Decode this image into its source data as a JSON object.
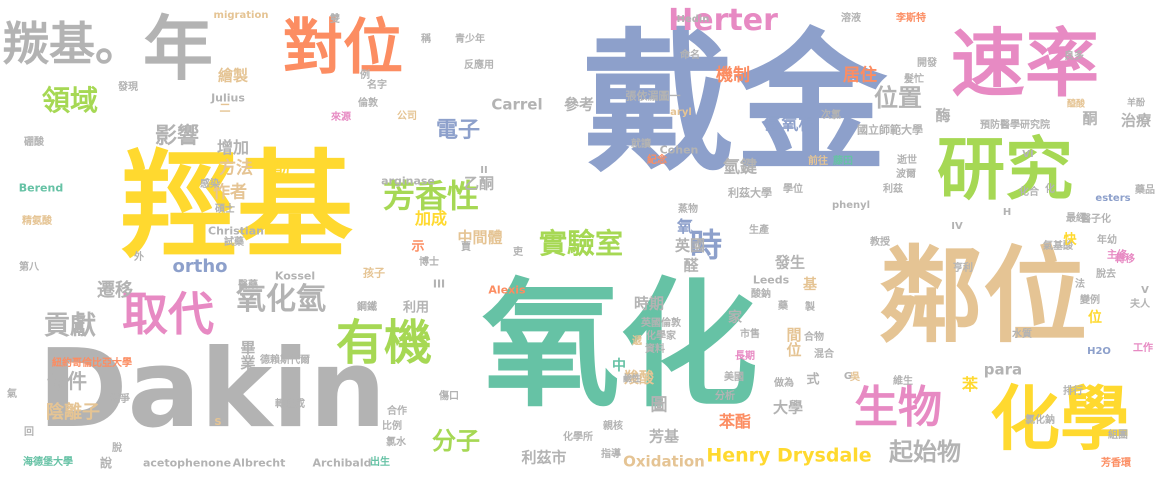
{
  "words": [
    {
      "text": "戴金",
      "color": "#8DA0CB"
    },
    {
      "text": "羥基",
      "color": "#FFD92F"
    },
    {
      "text": "氧化",
      "color": "#66C2A5"
    },
    {
      "text": "Dakin",
      "color": "#B3B3B3"
    },
    {
      "text": "鄰位",
      "color": "#E5C494"
    },
    {
      "text": "速率",
      "color": "#E78AC3"
    },
    {
      "text": "研究",
      "color": "#A6D854"
    },
    {
      "text": "化學",
      "color": "#FFD92F"
    },
    {
      "text": "對位",
      "color": "#FC8D62"
    },
    {
      "text": "年",
      "color": "#B3B3B3"
    },
    {
      "text": "羰基。",
      "color": "#B3B3B3"
    },
    {
      "text": "取代",
      "color": "#E78AC3"
    },
    {
      "text": "有機",
      "color": "#A6D854"
    },
    {
      "text": "生物",
      "color": "#E78AC3"
    },
    {
      "text": "Herter",
      "color": "#E78AC3"
    },
    {
      "text": "芳香性",
      "color": "#A6D854"
    },
    {
      "text": "實驗室",
      "color": "#A6D854"
    },
    {
      "text": "時",
      "color": "#8DA0CB"
    },
    {
      "text": "氧化氫",
      "color": "#B3B3B3"
    },
    {
      "text": "領域",
      "color": "#A6D854"
    },
    {
      "text": "影響",
      "color": "#B3B3B3"
    },
    {
      "text": "貢獻",
      "color": "#B3B3B3"
    },
    {
      "text": "電子",
      "color": "#8DA0CB"
    },
    {
      "text": "位置",
      "color": "#B3B3B3"
    },
    {
      "text": "分子",
      "color": "#A6D854"
    },
    {
      "text": "起始物",
      "color": "#B3B3B3"
    },
    {
      "text": "Henry Drysdale",
      "color": "#FFD92F"
    },
    {
      "text": "條件",
      "color": "#B3B3B3"
    },
    {
      "text": "陰離子",
      "color": "#E5C494"
    },
    {
      "text": "遷移",
      "color": "#B3B3B3"
    },
    {
      "text": "ortho",
      "color": "#8DA0CB"
    },
    {
      "text": "方法",
      "color": "#E5C494"
    },
    {
      "text": "酚",
      "color": "#FFD92F"
    },
    {
      "text": "作者",
      "color": "#E5C494"
    },
    {
      "text": "加成",
      "color": "#FFD92F"
    },
    {
      "text": "乙酮",
      "color": "#B3B3B3"
    },
    {
      "text": "中間體",
      "color": "#E5C494"
    },
    {
      "text": "增加",
      "color": "#B3B3B3"
    },
    {
      "text": "繪製",
      "color": "#E5C494"
    },
    {
      "text": "機制",
      "color": "#FC8D62"
    },
    {
      "text": "居住",
      "color": "#FC8D62"
    },
    {
      "text": "氫氧根",
      "color": "#8DA0CB"
    },
    {
      "text": "氫鍵",
      "color": "#B3B3B3"
    },
    {
      "text": "氧",
      "color": "#8DA0CB"
    },
    {
      "text": "英國",
      "color": "#B3B3B3"
    },
    {
      "text": "醛",
      "color": "#B3B3B3"
    },
    {
      "text": "發生",
      "color": "#B3B3B3"
    },
    {
      "text": "時期",
      "color": "#B3B3B3"
    },
    {
      "text": "羧酸",
      "color": "#E5C494"
    },
    {
      "text": "圖",
      "color": "#B3B3B3"
    },
    {
      "text": "芳基",
      "color": "#B3B3B3"
    },
    {
      "text": "苯酯",
      "color": "#FC8D62"
    },
    {
      "text": "大學",
      "color": "#B3B3B3"
    },
    {
      "text": "間位",
      "color": "#E5C494"
    },
    {
      "text": "畢業",
      "color": "#B3B3B3"
    },
    {
      "text": "利茲市",
      "color": "#B3B3B3"
    },
    {
      "text": "Oxidation",
      "color": "#E5C494"
    },
    {
      "text": "Carrel",
      "color": "#B3B3B3"
    },
    {
      "text": "參考",
      "color": "#B3B3B3"
    },
    {
      "text": "酶",
      "color": "#B3B3B3"
    },
    {
      "text": "酮",
      "color": "#B3B3B3"
    },
    {
      "text": "治療",
      "color": "#B3B3B3"
    },
    {
      "text": "苯",
      "color": "#FFD92F"
    },
    {
      "text": "para",
      "color": "#B3B3B3"
    },
    {
      "text": "Julius",
      "color": "#B3B3B3"
    },
    {
      "text": "Berend",
      "color": "#66C2A5"
    },
    {
      "text": "Christian",
      "color": "#B3B3B3"
    },
    {
      "text": "Kossel",
      "color": "#B3B3B3"
    },
    {
      "text": "Alexis",
      "color": "#FC8D62"
    },
    {
      "text": "Albrecht",
      "color": "#B3B3B3"
    },
    {
      "text": "Archibald",
      "color": "#B3B3B3"
    },
    {
      "text": "acetophenone",
      "color": "#B3B3B3"
    },
    {
      "text": "arginase",
      "color": "#B3B3B3"
    },
    {
      "text": "Cohen",
      "color": "#B3B3B3"
    },
    {
      "text": "Leeds",
      "color": "#B3B3B3"
    },
    {
      "text": "Hedin",
      "color": "#B3B3B3"
    },
    {
      "text": "migration",
      "color": "#E5C494"
    },
    {
      "text": "phenyl",
      "color": "#B3B3B3"
    },
    {
      "text": "esters",
      "color": "#8DA0CB"
    },
    {
      "text": "aryl",
      "color": "#E5C494"
    },
    {
      "text": "H2O",
      "color": "#8DA0CB"
    },
    {
      "text": "II",
      "color": "#B3B3B3"
    },
    {
      "text": "III",
      "color": "#B3B3B3"
    },
    {
      "text": "IV",
      "color": "#B3B3B3"
    },
    {
      "text": "V",
      "color": "#B3B3B3"
    },
    {
      "text": "VI",
      "color": "#B3B3B3"
    },
    {
      "text": "G",
      "color": "#B3B3B3"
    },
    {
      "text": "S",
      "color": "#E5C494"
    },
    {
      "text": "H",
      "color": "#B3B3B3"
    },
    {
      "text": "國立師範大學",
      "color": "#B3B3B3"
    },
    {
      "text": "預防醫學研究院",
      "color": "#B3B3B3"
    },
    {
      "text": "利茲大學",
      "color": "#B3B3B3"
    },
    {
      "text": "張依湄圖一",
      "color": "#B3B3B3"
    },
    {
      "text": "英國倫敦",
      "color": "#B3B3B3"
    },
    {
      "text": "紐約哥倫比亞大學",
      "color": "#FC8D62"
    },
    {
      "text": "海德堡大學",
      "color": "#66C2A5"
    },
    {
      "text": "德賴斯代爾",
      "color": "#B3B3B3"
    },
    {
      "text": "化學所",
      "color": "#B3B3B3"
    },
    {
      "text": "化學家",
      "color": "#B3B3B3"
    },
    {
      "text": "精氨酸",
      "color": "#E5C494"
    },
    {
      "text": "硼酸",
      "color": "#B3B3B3"
    },
    {
      "text": "氣基酸",
      "color": "#B3B3B3"
    },
    {
      "text": "氯化鈉",
      "color": "#B3B3B3"
    },
    {
      "text": "芳香環",
      "color": "#FC8D62"
    },
    {
      "text": "李斯特",
      "color": "#FC8D62"
    },
    {
      "text": "溶液",
      "color": "#B3B3B3"
    },
    {
      "text": "反應用",
      "color": "#B3B3B3"
    },
    {
      "text": "青少年",
      "color": "#B3B3B3"
    },
    {
      "text": "來源",
      "color": "#E78AC3"
    },
    {
      "text": "倫敦",
      "color": "#B3B3B3"
    },
    {
      "text": "名字",
      "color": "#B3B3B3"
    },
    {
      "text": "公司",
      "color": "#E5C494"
    },
    {
      "text": "就讀",
      "color": "#B3B3B3"
    },
    {
      "text": "紀念",
      "color": "#FC8D62"
    },
    {
      "text": "藥品",
      "color": "#B3B3B3"
    },
    {
      "text": "良多",
      "color": "#B3B3B3"
    },
    {
      "text": "開發",
      "color": "#B3B3B3"
    },
    {
      "text": "髮忙",
      "color": "#B3B3B3"
    },
    {
      "text": "逝世",
      "color": "#B3B3B3"
    },
    {
      "text": "波爾",
      "color": "#B3B3B3"
    },
    {
      "text": "利茲",
      "color": "#B3B3B3"
    },
    {
      "text": "前往",
      "color": "#E5C494"
    },
    {
      "text": "藤田",
      "color": "#66C2A5"
    },
    {
      "text": "學位",
      "color": "#B3B3B3"
    },
    {
      "text": "教授",
      "color": "#B3B3B3"
    },
    {
      "text": "亨利",
      "color": "#B3B3B3"
    },
    {
      "text": "年幼",
      "color": "#B3B3B3"
    },
    {
      "text": "主修",
      "color": "#E78AC3"
    },
    {
      "text": "水質",
      "color": "#B3B3B3"
    },
    {
      "text": "夫人",
      "color": "#B3B3B3"
    },
    {
      "text": "工作",
      "color": "#E78AC3"
    },
    {
      "text": "維生",
      "color": "#B3B3B3"
    },
    {
      "text": "混合",
      "color": "#B3B3B3"
    },
    {
      "text": "合物",
      "color": "#B3B3B3"
    },
    {
      "text": "市售",
      "color": "#B3B3B3"
    },
    {
      "text": "長期",
      "color": "#E78AC3"
    },
    {
      "text": "資料",
      "color": "#B3B3B3"
    },
    {
      "text": "美國",
      "color": "#B3B3B3"
    },
    {
      "text": "分析",
      "color": "#B3B3B3"
    },
    {
      "text": "做為",
      "color": "#B3B3B3"
    },
    {
      "text": "排行",
      "color": "#B3B3B3"
    },
    {
      "text": "指導",
      "color": "#B3B3B3"
    },
    {
      "text": "出生",
      "color": "#B3B3B3"
    },
    {
      "text": "比例",
      "color": "#B3B3B3"
    },
    {
      "text": "氯水",
      "color": "#B3B3B3"
    },
    {
      "text": "合作",
      "color": "#B3B3B3"
    },
    {
      "text": "鋼鐵",
      "color": "#B3B3B3"
    },
    {
      "text": "利用",
      "color": "#B3B3B3"
    },
    {
      "text": "孩子",
      "color": "#E5C494"
    },
    {
      "text": "博士",
      "color": "#B3B3B3"
    },
    {
      "text": "碩士",
      "color": "#B3B3B3"
    },
    {
      "text": "試藥",
      "color": "#B3B3B3"
    },
    {
      "text": "感染",
      "color": "#B3B3B3"
    },
    {
      "text": "戰爭",
      "color": "#B3B3B3"
    },
    {
      "text": "第八",
      "color": "#B3B3B3"
    },
    {
      "text": "醫藥",
      "color": "#B3B3B3"
    },
    {
      "text": "轉位成",
      "color": "#B3B3B3"
    },
    {
      "text": "發現",
      "color": "#B3B3B3"
    },
    {
      "text": "次氯",
      "color": "#B3B3B3"
    },
    {
      "text": "命名",
      "color": "#B3B3B3"
    },
    {
      "text": "化合",
      "color": "#B3B3B3"
    },
    {
      "text": "最經",
      "color": "#B3B3B3"
    },
    {
      "text": "醫子化",
      "color": "#B3B3B3"
    },
    {
      "text": "組團",
      "color": "#B3B3B3"
    },
    {
      "text": "生產",
      "color": "#B3B3B3"
    },
    {
      "text": "說",
      "color": "#B3B3B3"
    },
    {
      "text": "例",
      "color": "#B3B3B3"
    },
    {
      "text": "中",
      "color": "#66C2A5"
    },
    {
      "text": "家",
      "color": "#B3B3B3"
    },
    {
      "text": "基",
      "color": "#E5C494"
    },
    {
      "text": "式",
      "color": "#B3B3B3"
    },
    {
      "text": "示",
      "color": "#FC8D62"
    },
    {
      "text": "快",
      "color": "#FFD92F"
    },
    {
      "text": "位",
      "color": "#FFD92F"
    },
    {
      "text": "法",
      "color": "#B3B3B3"
    },
    {
      "text": "化",
      "color": "#B3B3B3"
    },
    {
      "text": "雙",
      "color": "#B3B3B3"
    },
    {
      "text": "稱",
      "color": "#B3B3B3"
    },
    {
      "text": "回",
      "color": "#B3B3B3"
    },
    {
      "text": "外",
      "color": "#B3B3B3"
    },
    {
      "text": "脫",
      "color": "#B3B3B3"
    },
    {
      "text": "藥",
      "color": "#B3B3B3"
    },
    {
      "text": "製",
      "color": "#B3B3B3"
    },
    {
      "text": "賈",
      "color": "#B3B3B3"
    },
    {
      "text": "吏",
      "color": "#B3B3B3"
    },
    {
      "text": "二",
      "color": "#E5C494"
    },
    {
      "text": "氣",
      "color": "#B3B3B3"
    },
    {
      "text": "脫去",
      "color": "#B3B3B3"
    },
    {
      "text": "轉移",
      "color": "#E78AC3"
    },
    {
      "text": "變例",
      "color": "#B3B3B3"
    },
    {
      "text": "酸鈉",
      "color": "#B3B3B3"
    },
    {
      "text": "醯酸",
      "color": "#E5C494"
    },
    {
      "text": "羊酚",
      "color": "#B3B3B3"
    },
    {
      "text": "鹼性",
      "color": "#B3B3B3"
    },
    {
      "text": "傷口",
      "color": "#B3B3B3"
    },
    {
      "text": "親核",
      "color": "#B3B3B3"
    },
    {
      "text": "遞",
      "color": "#E5C494"
    },
    {
      "text": "蒸物",
      "color": "#B3B3B3"
    },
    {
      "text": "吳",
      "color": "#E5C494"
    }
  ]
}
